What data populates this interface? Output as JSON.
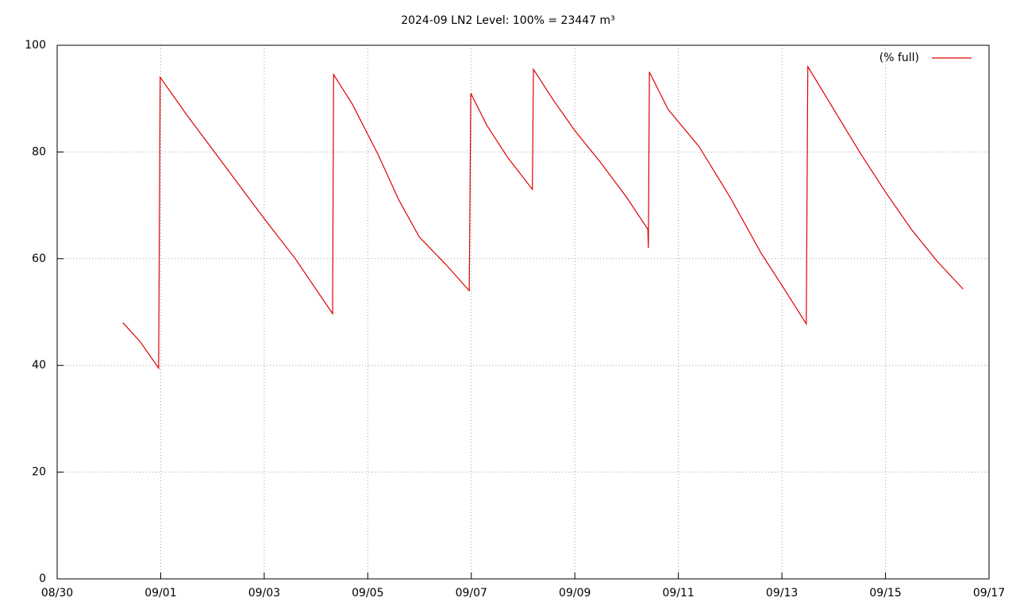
{
  "chart_data": {
    "type": "line",
    "title": "2024-09 LN2 Level: 100% = 23447 m³",
    "series": [
      {
        "name": "(% full)",
        "color": "#dd0000",
        "x": [
          1.27,
          1.6,
          1.96,
          1.99,
          2.5,
          3.0,
          3.5,
          4.0,
          4.6,
          5.32,
          5.34,
          5.7,
          6.2,
          6.6,
          7.0,
          7.5,
          7.96,
          7.99,
          8.3,
          8.7,
          9.18,
          9.2,
          9.6,
          10.0,
          10.5,
          11.0,
          11.41,
          11.42,
          11.44,
          11.8,
          12.4,
          13.0,
          13.6,
          14.0,
          14.47,
          14.5,
          15.0,
          15.5,
          16.0,
          16.5,
          17.0,
          17.5
        ],
        "values": [
          48,
          44.5,
          39.5,
          94,
          87,
          80.5,
          74,
          67.5,
          60,
          49.7,
          94.5,
          89,
          79.5,
          71,
          64,
          59,
          54,
          91,
          85,
          79,
          73,
          95.5,
          89.5,
          84,
          78,
          71.5,
          65.5,
          62,
          95,
          88,
          81,
          71.5,
          61,
          55,
          47.8,
          96,
          88,
          80,
          72.5,
          65.5,
          59.5,
          54.3
        ]
      }
    ],
    "xlim": [
      0,
      18
    ],
    "xticks": [
      {
        "value": 0,
        "label": "08/30"
      },
      {
        "value": 2,
        "label": "09/01"
      },
      {
        "value": 4,
        "label": "09/03"
      },
      {
        "value": 6,
        "label": "09/05"
      },
      {
        "value": 8,
        "label": "09/07"
      },
      {
        "value": 10,
        "label": "09/09"
      },
      {
        "value": 12,
        "label": "09/11"
      },
      {
        "value": 14,
        "label": "09/13"
      },
      {
        "value": 16,
        "label": "09/15"
      },
      {
        "value": 18,
        "label": "09/17"
      }
    ],
    "ylim": [
      0,
      100
    ],
    "yticks": [
      0,
      20,
      40,
      60,
      80,
      100
    ],
    "grid": true,
    "legend": "upper right"
  }
}
